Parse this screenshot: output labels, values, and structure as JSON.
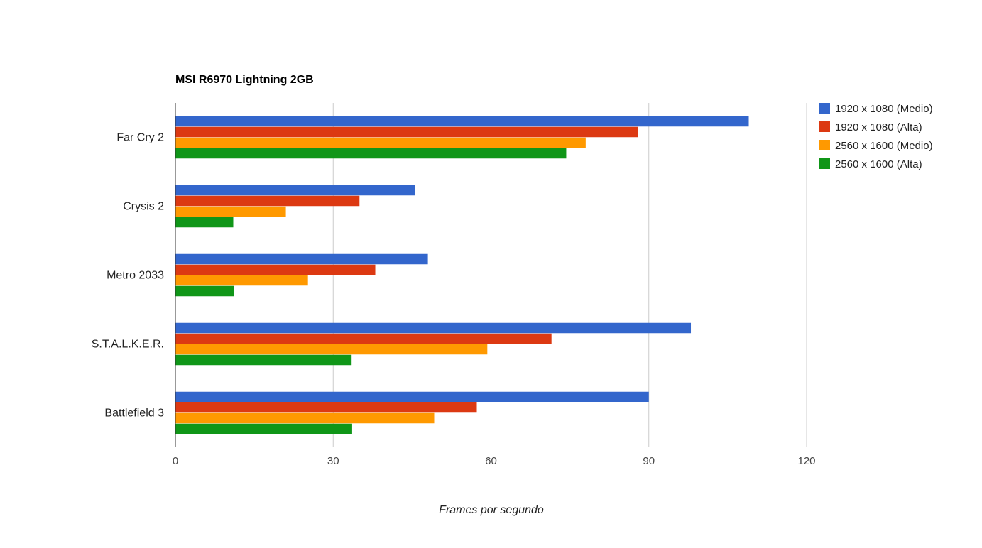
{
  "chart_data": {
    "type": "bar",
    "orientation": "horizontal",
    "title": "MSI R6970 Lightning 2GB",
    "xlabel": "Frames por segundo",
    "ylabel": "",
    "xlim": [
      0,
      120
    ],
    "xticks": [
      0,
      30,
      60,
      90,
      120
    ],
    "grid": true,
    "legend_position": "right",
    "categories": [
      "Far Cry 2",
      "Crysis 2",
      "Metro 2033",
      "S.T.A.L.K.E.R.",
      "Battlefield 3"
    ],
    "series": [
      {
        "name": "1920 x 1080 (Medio)",
        "color": "#3366cc",
        "values": [
          109,
          45.5,
          48,
          98,
          90
        ]
      },
      {
        "name": "1920 x 1080 (Alta)",
        "color": "#dc3912",
        "values": [
          88,
          35,
          38,
          71.5,
          57.3
        ]
      },
      {
        "name": "2560 x 1600 (Medio)",
        "color": "#ff9900",
        "values": [
          78,
          21,
          25.2,
          59.3,
          49.2
        ]
      },
      {
        "name": "2560 x 1600 (Alta)",
        "color": "#109618",
        "values": [
          74.3,
          11,
          11.2,
          33.5,
          33.6
        ]
      }
    ]
  }
}
